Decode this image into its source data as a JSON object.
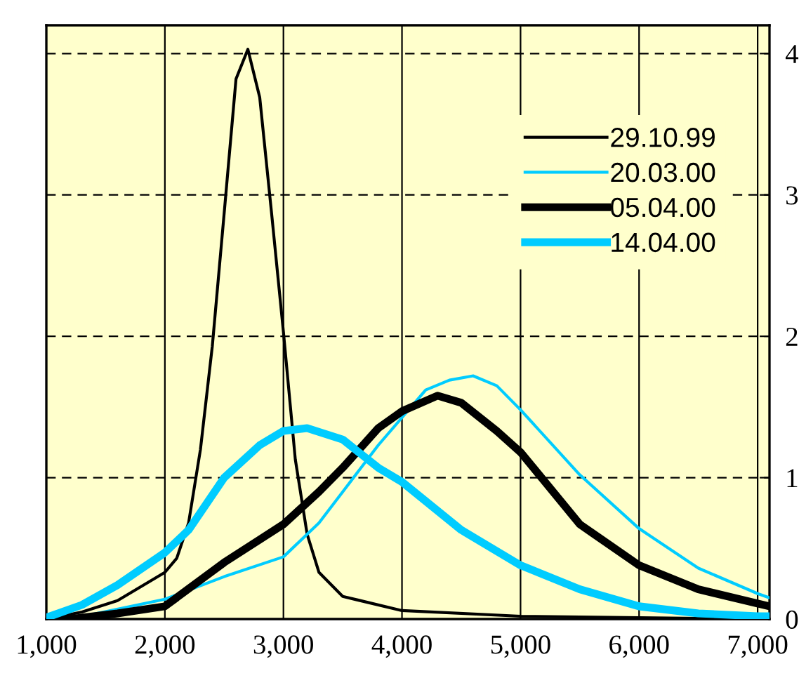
{
  "chart_data": {
    "type": "line",
    "xlim": [
      1000,
      7100
    ],
    "ylim": [
      0,
      4.2
    ],
    "xticks": [
      {
        "value": 1000,
        "label": "1,000"
      },
      {
        "value": 2000,
        "label": "2,000"
      },
      {
        "value": 3000,
        "label": "3,000"
      },
      {
        "value": 4000,
        "label": "4,000"
      },
      {
        "value": 5000,
        "label": "5,000"
      },
      {
        "value": 6000,
        "label": "6,000"
      },
      {
        "value": 7000,
        "label": "7,000"
      }
    ],
    "yticks": [
      0,
      1,
      2,
      3,
      4
    ],
    "grid": true,
    "legend": "top right",
    "marker": "none",
    "line_style": "solid",
    "series": [
      {
        "name": "29.10.99",
        "color": "#000000",
        "x": [
          1000,
          1300,
          1600,
          2000,
          2100,
          2200,
          2300,
          2400,
          2500,
          2600,
          2700,
          2800,
          2900,
          3000,
          3100,
          3200,
          3300,
          3500,
          4000,
          5000,
          6000,
          7000,
          7100
        ],
        "values": [
          0,
          0.05,
          0.13,
          0.33,
          0.43,
          0.68,
          1.2,
          1.93,
          2.87,
          3.82,
          4.03,
          3.69,
          2.87,
          2.03,
          1.13,
          0.6,
          0.33,
          0.16,
          0.06,
          0.02,
          0.01,
          0,
          0
        ]
      },
      {
        "name": "20.03.00",
        "color": "#00ccff",
        "x": [
          1000,
          1200,
          2000,
          2500,
          3000,
          3300,
          3500,
          3800,
          4200,
          4400,
          4600,
          4800,
          5000,
          5500,
          6000,
          6500,
          7000,
          7100
        ],
        "values": [
          0,
          0,
          0.14,
          0.3,
          0.44,
          0.68,
          0.9,
          1.23,
          1.62,
          1.69,
          1.72,
          1.65,
          1.48,
          1.02,
          0.64,
          0.36,
          0.18,
          0.15
        ]
      },
      {
        "name": "05.04.00",
        "color": "#000000",
        "x": [
          1000,
          1200,
          1600,
          2000,
          2500,
          3000,
          3300,
          3500,
          3800,
          4000,
          4300,
          4500,
          4800,
          5000,
          5500,
          6000,
          6500,
          7000,
          7100
        ],
        "values": [
          0,
          0,
          0.04,
          0.09,
          0.4,
          0.67,
          0.9,
          1.07,
          1.35,
          1.47,
          1.58,
          1.53,
          1.33,
          1.18,
          0.67,
          0.38,
          0.21,
          0.11,
          0.09
        ]
      },
      {
        "name": "14.04.00",
        "color": "#00ccff",
        "x": [
          1000,
          1300,
          1600,
          2000,
          2200,
          2500,
          2800,
          3000,
          3200,
          3500,
          3800,
          4000,
          4500,
          5000,
          5500,
          6000,
          6500,
          7000,
          7100
        ],
        "values": [
          0.01,
          0.1,
          0.24,
          0.47,
          0.63,
          1.0,
          1.23,
          1.33,
          1.35,
          1.27,
          1.07,
          0.97,
          0.63,
          0.38,
          0.21,
          0.09,
          0.04,
          0.02,
          0.02
        ]
      }
    ]
  }
}
